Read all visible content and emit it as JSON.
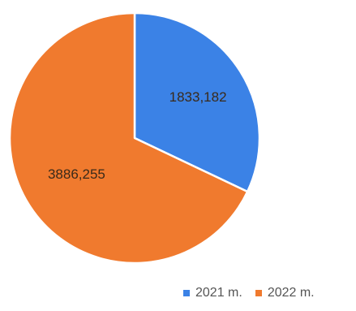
{
  "chart_data": {
    "type": "pie",
    "categories": [
      "2021 m.",
      "2022 m."
    ],
    "values": [
      1833.182,
      3886.255
    ],
    "data_labels": [
      "1833,182",
      "3886,255"
    ],
    "colors": [
      "#3b82e6",
      "#f07a2e"
    ],
    "title": "",
    "legend_position": "bottom-right"
  }
}
